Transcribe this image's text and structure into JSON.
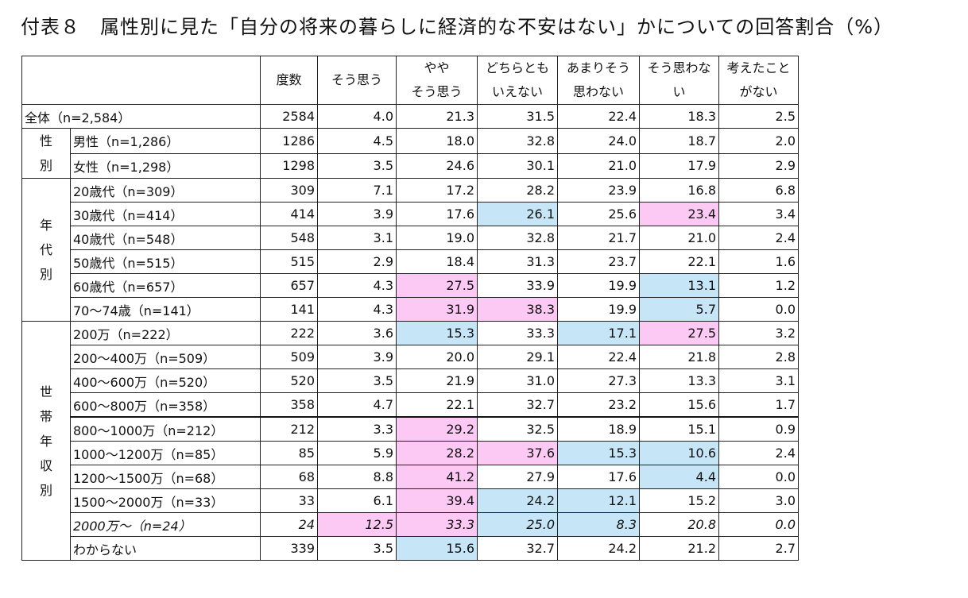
{
  "title": "付表８　属性別に見た「自分の将来の暮らしに経済的な不安はない」かについての回答割合（%）",
  "headers": [
    [
      "度数"
    ],
    [
      "そう思う"
    ],
    [
      "やや",
      "そう思う"
    ],
    [
      "どちらとも",
      "いえない"
    ],
    [
      "あまりそう",
      "思わない"
    ],
    [
      "そう思わな",
      "い"
    ],
    [
      "考えたこと",
      "がない"
    ]
  ],
  "overall": {
    "label": "全体（n=2,584）",
    "values": [
      "2584",
      "4.0",
      "21.3",
      "31.5",
      "22.4",
      "18.3",
      "2.5"
    ],
    "hl": [
      "",
      "",
      "",
      "",
      "",
      "",
      ""
    ]
  },
  "groups": [
    {
      "label": [
        "性",
        "別"
      ],
      "rows": [
        {
          "label": "男性（n=1,286）",
          "values": [
            "1286",
            "4.5",
            "18.0",
            "32.8",
            "24.0",
            "18.7",
            "2.0"
          ],
          "hl": [
            "",
            "",
            "",
            "",
            "",
            "",
            ""
          ]
        },
        {
          "label": "女性（n=1,298）",
          "values": [
            "1298",
            "3.5",
            "24.6",
            "30.1",
            "21.0",
            "17.9",
            "2.9"
          ],
          "hl": [
            "",
            "",
            "",
            "",
            "",
            "",
            ""
          ]
        }
      ]
    },
    {
      "label": [
        "年",
        "代",
        "別"
      ],
      "rows": [
        {
          "label": "20歳代（n=309）",
          "values": [
            "309",
            "7.1",
            "17.2",
            "28.2",
            "23.9",
            "16.8",
            "6.8"
          ],
          "hl": [
            "",
            "",
            "",
            "",
            "",
            "",
            ""
          ]
        },
        {
          "label": "30歳代（n=414）",
          "values": [
            "414",
            "3.9",
            "17.6",
            "26.1",
            "25.6",
            "23.4",
            "3.4"
          ],
          "hl": [
            "",
            "",
            "",
            "blue",
            "",
            "pink",
            ""
          ]
        },
        {
          "label": "40歳代（n=548）",
          "values": [
            "548",
            "3.1",
            "19.0",
            "32.8",
            "21.7",
            "21.0",
            "2.4"
          ],
          "hl": [
            "",
            "",
            "",
            "",
            "",
            "",
            ""
          ]
        },
        {
          "label": "50歳代（n=515）",
          "values": [
            "515",
            "2.9",
            "18.4",
            "31.3",
            "23.7",
            "22.1",
            "1.6"
          ],
          "hl": [
            "",
            "",
            "",
            "",
            "",
            "",
            ""
          ]
        },
        {
          "label": "60歳代（n=657）",
          "values": [
            "657",
            "4.3",
            "27.5",
            "33.9",
            "19.9",
            "13.1",
            "1.2"
          ],
          "hl": [
            "",
            "",
            "pink",
            "",
            "",
            "blue",
            ""
          ]
        },
        {
          "label": "70～74歳（n=141）",
          "values": [
            "141",
            "4.3",
            "31.9",
            "38.3",
            "19.9",
            "5.7",
            "0.0"
          ],
          "hl": [
            "",
            "",
            "pink",
            "pink",
            "",
            "blue",
            ""
          ]
        }
      ]
    },
    {
      "label": [
        "世",
        "帯",
        "年",
        "収",
        "別"
      ],
      "rows": [
        {
          "label": "200万（n=222）",
          "values": [
            "222",
            "3.6",
            "15.3",
            "33.3",
            "17.1",
            "27.5",
            "3.2"
          ],
          "hl": [
            "",
            "",
            "blue",
            "",
            "blue",
            "pink",
            ""
          ]
        },
        {
          "label": "200～400万（n=509）",
          "values": [
            "509",
            "3.9",
            "20.0",
            "29.1",
            "22.4",
            "21.8",
            "2.8"
          ],
          "hl": [
            "",
            "",
            "",
            "",
            "",
            "",
            ""
          ]
        },
        {
          "label": "400～600万（n=520）",
          "values": [
            "520",
            "3.5",
            "21.9",
            "31.0",
            "27.3",
            "13.3",
            "3.1"
          ],
          "hl": [
            "",
            "",
            "",
            "",
            "",
            "",
            ""
          ]
        },
        {
          "label": "600～800万（n=358）",
          "values": [
            "358",
            "4.7",
            "22.1",
            "32.7",
            "23.2",
            "15.6",
            "1.7"
          ],
          "hl": [
            "",
            "",
            "",
            "",
            "",
            "",
            ""
          ],
          "thick": true
        },
        {
          "label": "800～1000万（n=212）",
          "values": [
            "212",
            "3.3",
            "29.2",
            "32.5",
            "18.9",
            "15.1",
            "0.9"
          ],
          "hl": [
            "",
            "",
            "pink",
            "",
            "",
            "",
            ""
          ]
        },
        {
          "label": "1000～1200万（n=85）",
          "values": [
            "85",
            "5.9",
            "28.2",
            "37.6",
            "15.3",
            "10.6",
            "2.4"
          ],
          "hl": [
            "",
            "",
            "pink",
            "pink",
            "blue",
            "blue",
            ""
          ]
        },
        {
          "label": "1200～1500万（n=68）",
          "values": [
            "68",
            "8.8",
            "41.2",
            "27.9",
            "17.6",
            "4.4",
            "0.0"
          ],
          "hl": [
            "",
            "",
            "pink",
            "",
            "",
            "blue",
            ""
          ]
        },
        {
          "label": "1500～2000万（n=33）",
          "values": [
            "33",
            "6.1",
            "39.4",
            "24.2",
            "12.1",
            "15.2",
            "3.0"
          ],
          "hl": [
            "",
            "",
            "pink",
            "blue",
            "blue",
            "",
            ""
          ]
        },
        {
          "label": "2000万～（n=24）",
          "values": [
            "24",
            "12.5",
            "33.3",
            "25.0",
            "8.3",
            "20.8",
            "0.0"
          ],
          "hl": [
            "",
            "pink",
            "pink",
            "blue",
            "blue",
            "",
            ""
          ],
          "italic": true
        },
        {
          "label": "わからない",
          "values": [
            "339",
            "3.5",
            "15.6",
            "32.7",
            "24.2",
            "21.2",
            "2.7"
          ],
          "hl": [
            "",
            "",
            "blue",
            "",
            "",
            "",
            ""
          ]
        }
      ]
    }
  ]
}
